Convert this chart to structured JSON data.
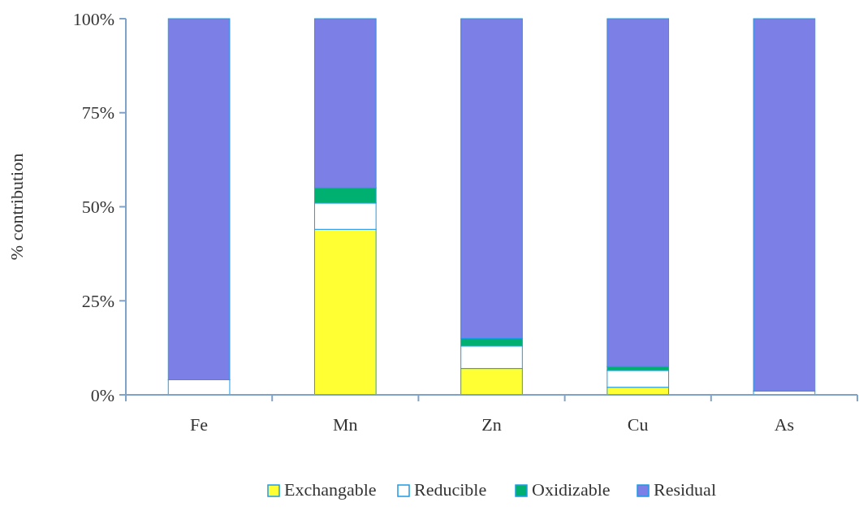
{
  "chart_data": {
    "type": "bar",
    "stacked": true,
    "ylabel": "% contribution",
    "categories": [
      "Fe",
      "Mn",
      "Zn",
      "Cu",
      "As"
    ],
    "series": [
      {
        "name": "Exchangable",
        "color": "#ffff33",
        "values": [
          0,
          44,
          7,
          2,
          0
        ]
      },
      {
        "name": "Reducible",
        "color": "#ffffff",
        "values": [
          4,
          7,
          6,
          4.5,
          1
        ]
      },
      {
        "name": "Oxidizable",
        "color": "#00b070",
        "values": [
          0,
          4,
          2,
          1,
          0
        ]
      },
      {
        "name": "Residual",
        "color": "#7b7fe6",
        "values": [
          96,
          45,
          85,
          92.5,
          99
        ]
      }
    ],
    "ylim": [
      0,
      100
    ],
    "yticks": [
      {
        "value": 0,
        "label": "0%"
      },
      {
        "value": 25,
        "label": "25%"
      },
      {
        "value": 50,
        "label": "50%"
      },
      {
        "value": 75,
        "label": "75%"
      },
      {
        "value": 100,
        "label": "100%"
      }
    ],
    "grid": false,
    "legend": "bottom"
  }
}
